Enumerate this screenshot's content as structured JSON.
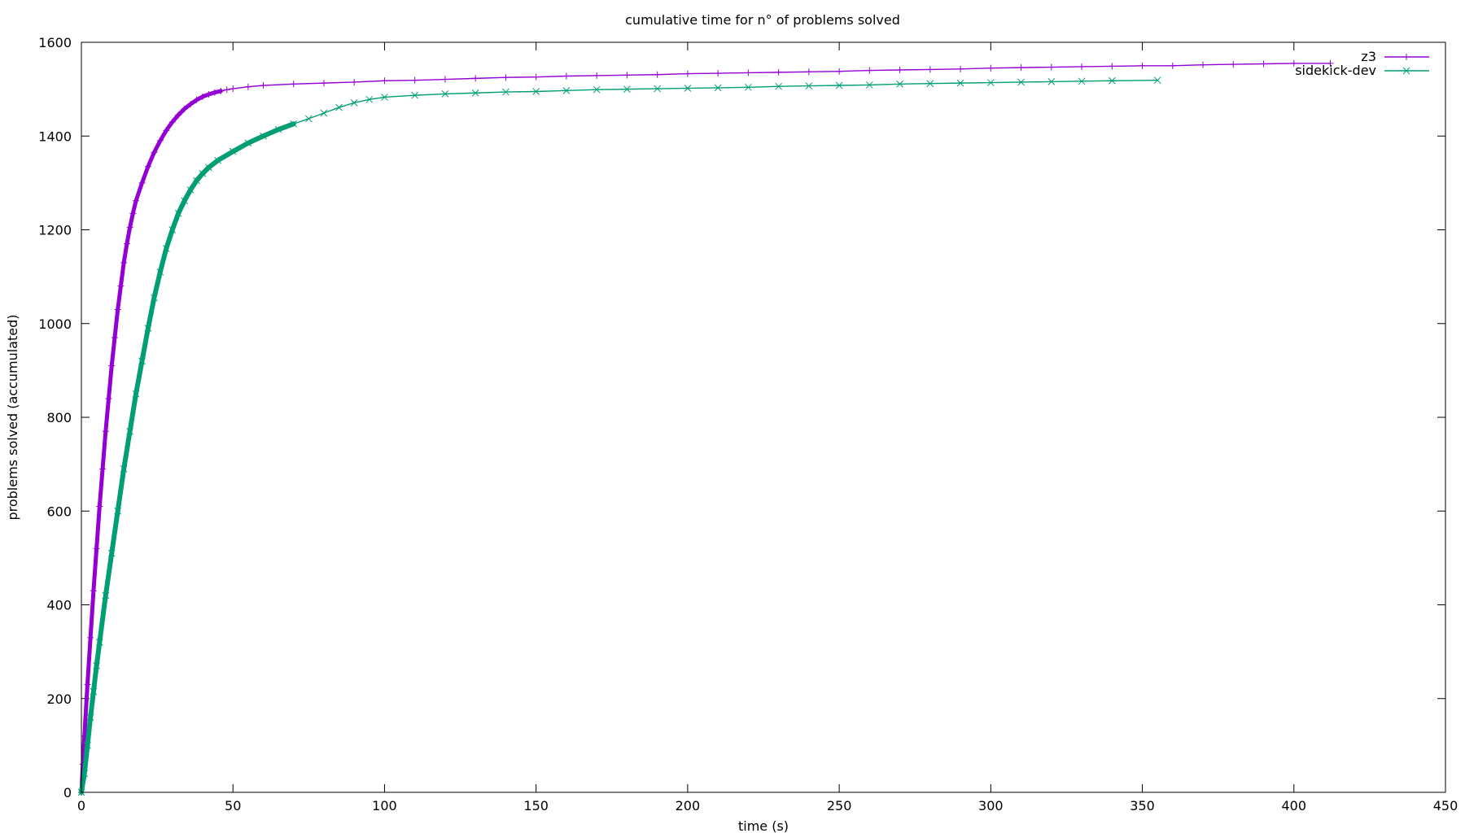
{
  "chart_data": {
    "type": "line",
    "title": "cumulative time for n° of problems solved",
    "xlabel": "time (s)",
    "ylabel": "problems solved (accumulated)",
    "xlim": [
      0,
      450
    ],
    "ylim": [
      0,
      1600
    ],
    "xticks": [
      0,
      50,
      100,
      150,
      200,
      250,
      300,
      350,
      400,
      450
    ],
    "yticks": [
      0,
      200,
      400,
      600,
      800,
      1000,
      1200,
      1400,
      1600
    ],
    "grid": false,
    "legend_position": "top-right",
    "series": [
      {
        "name": "z3",
        "color": "#9400d3",
        "marker": "plus",
        "points": [
          [
            0,
            0
          ],
          [
            0.5,
            60
          ],
          [
            1,
            120
          ],
          [
            2,
            230
          ],
          [
            3,
            330
          ],
          [
            4,
            430
          ],
          [
            5,
            520
          ],
          [
            6,
            610
          ],
          [
            7,
            690
          ],
          [
            8,
            770
          ],
          [
            9,
            840
          ],
          [
            10,
            910
          ],
          [
            11,
            970
          ],
          [
            12,
            1030
          ],
          [
            13,
            1080
          ],
          [
            14,
            1130
          ],
          [
            15,
            1170
          ],
          [
            16,
            1205
          ],
          [
            17,
            1235
          ],
          [
            18,
            1262
          ],
          [
            20,
            1300
          ],
          [
            22,
            1335
          ],
          [
            24,
            1365
          ],
          [
            26,
            1390
          ],
          [
            28,
            1412
          ],
          [
            30,
            1430
          ],
          [
            32,
            1445
          ],
          [
            34,
            1458
          ],
          [
            36,
            1468
          ],
          [
            38,
            1477
          ],
          [
            40,
            1484
          ],
          [
            42,
            1489
          ],
          [
            44,
            1493
          ],
          [
            46,
            1496
          ],
          [
            48,
            1499
          ],
          [
            50,
            1501
          ],
          [
            55,
            1505
          ],
          [
            60,
            1508
          ],
          [
            70,
            1511
          ],
          [
            80,
            1513
          ],
          [
            90,
            1515
          ],
          [
            100,
            1518
          ],
          [
            110,
            1519
          ],
          [
            120,
            1521
          ],
          [
            130,
            1523
          ],
          [
            140,
            1525
          ],
          [
            150,
            1526
          ],
          [
            160,
            1528
          ],
          [
            170,
            1529
          ],
          [
            180,
            1530
          ],
          [
            190,
            1531
          ],
          [
            200,
            1533
          ],
          [
            210,
            1534
          ],
          [
            220,
            1535
          ],
          [
            230,
            1536
          ],
          [
            240,
            1537
          ],
          [
            250,
            1538
          ],
          [
            260,
            1540
          ],
          [
            270,
            1541
          ],
          [
            280,
            1542
          ],
          [
            290,
            1543
          ],
          [
            300,
            1545
          ],
          [
            310,
            1546
          ],
          [
            320,
            1547
          ],
          [
            330,
            1548
          ],
          [
            340,
            1549
          ],
          [
            350,
            1550
          ],
          [
            360,
            1550
          ],
          [
            370,
            1552
          ],
          [
            380,
            1553
          ],
          [
            390,
            1554
          ],
          [
            400,
            1555
          ],
          [
            412,
            1555
          ]
        ]
      },
      {
        "name": "sidekick-dev",
        "color": "#009e73",
        "marker": "cross",
        "points": [
          [
            0,
            0
          ],
          [
            1,
            40
          ],
          [
            2,
            100
          ],
          [
            3,
            160
          ],
          [
            4,
            215
          ],
          [
            5,
            270
          ],
          [
            6,
            320
          ],
          [
            8,
            420
          ],
          [
            10,
            510
          ],
          [
            12,
            600
          ],
          [
            14,
            690
          ],
          [
            16,
            770
          ],
          [
            18,
            850
          ],
          [
            20,
            920
          ],
          [
            22,
            990
          ],
          [
            24,
            1055
          ],
          [
            26,
            1110
          ],
          [
            28,
            1160
          ],
          [
            30,
            1200
          ],
          [
            32,
            1235
          ],
          [
            34,
            1262
          ],
          [
            36,
            1285
          ],
          [
            38,
            1305
          ],
          [
            40,
            1320
          ],
          [
            42,
            1333
          ],
          [
            45,
            1348
          ],
          [
            50,
            1367
          ],
          [
            55,
            1385
          ],
          [
            60,
            1400
          ],
          [
            65,
            1414
          ],
          [
            70,
            1426
          ],
          [
            75,
            1437
          ],
          [
            80,
            1449
          ],
          [
            85,
            1461
          ],
          [
            90,
            1471
          ],
          [
            95,
            1478
          ],
          [
            100,
            1483
          ],
          [
            110,
            1487
          ],
          [
            120,
            1490
          ],
          [
            130,
            1492
          ],
          [
            140,
            1494
          ],
          [
            150,
            1495
          ],
          [
            160,
            1497
          ],
          [
            170,
            1499
          ],
          [
            180,
            1500
          ],
          [
            190,
            1501
          ],
          [
            200,
            1502
          ],
          [
            210,
            1503
          ],
          [
            220,
            1504
          ],
          [
            230,
            1506
          ],
          [
            240,
            1507
          ],
          [
            250,
            1508
          ],
          [
            260,
            1509
          ],
          [
            270,
            1511
          ],
          [
            280,
            1512
          ],
          [
            290,
            1513
          ],
          [
            300,
            1514
          ],
          [
            310,
            1515
          ],
          [
            320,
            1516
          ],
          [
            330,
            1517
          ],
          [
            340,
            1518
          ],
          [
            355,
            1519
          ]
        ]
      }
    ]
  }
}
